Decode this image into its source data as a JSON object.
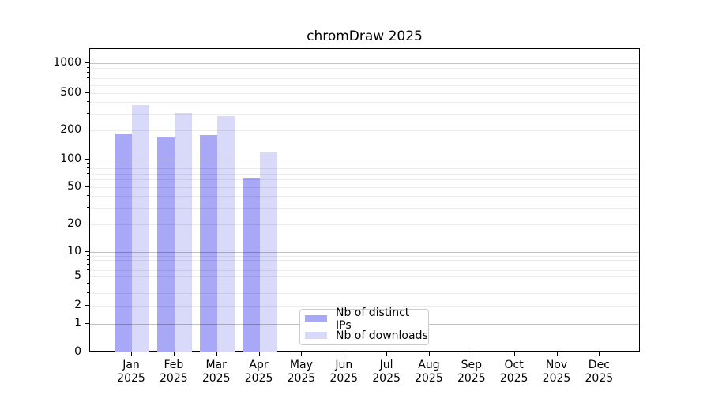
{
  "title": "chromDraw 2025",
  "chart_data": {
    "type": "bar",
    "title": "chromDraw 2025",
    "categories": [
      "Jan 2025",
      "Feb 2025",
      "Mar 2025",
      "Apr 2025",
      "May 2025",
      "Jun 2025",
      "Jul 2025",
      "Aug 2025",
      "Sep 2025",
      "Oct 2025",
      "Nov 2025",
      "Dec 2025"
    ],
    "series": [
      {
        "name": "Nb of distinct IPs",
        "color": "#a8a8f7",
        "values": [
          185,
          170,
          178,
          63,
          null,
          null,
          null,
          null,
          null,
          null,
          null,
          null
        ]
      },
      {
        "name": "Nb of downloads",
        "color": "#d9d9fa",
        "values": [
          370,
          310,
          285,
          118,
          null,
          null,
          null,
          null,
          null,
          null,
          null,
          null
        ]
      }
    ],
    "xlabel": "",
    "ylabel": "",
    "yaxis": {
      "scale": "log-like (symlog/asinh), 0 shown at baseline",
      "tick_values": [
        0,
        1,
        2,
        5,
        10,
        20,
        50,
        100,
        200,
        500,
        1000
      ],
      "tick_labels": [
        "0",
        "1",
        "2",
        "5",
        "10",
        "20",
        "50",
        "100",
        "200",
        "500",
        "1000"
      ],
      "range": [
        0,
        1400
      ]
    },
    "grid": "horizontal major gridlines at powers of 10 (darker) and minor log gridlines (light)",
    "legend_position": "inside plot, lower middle"
  }
}
